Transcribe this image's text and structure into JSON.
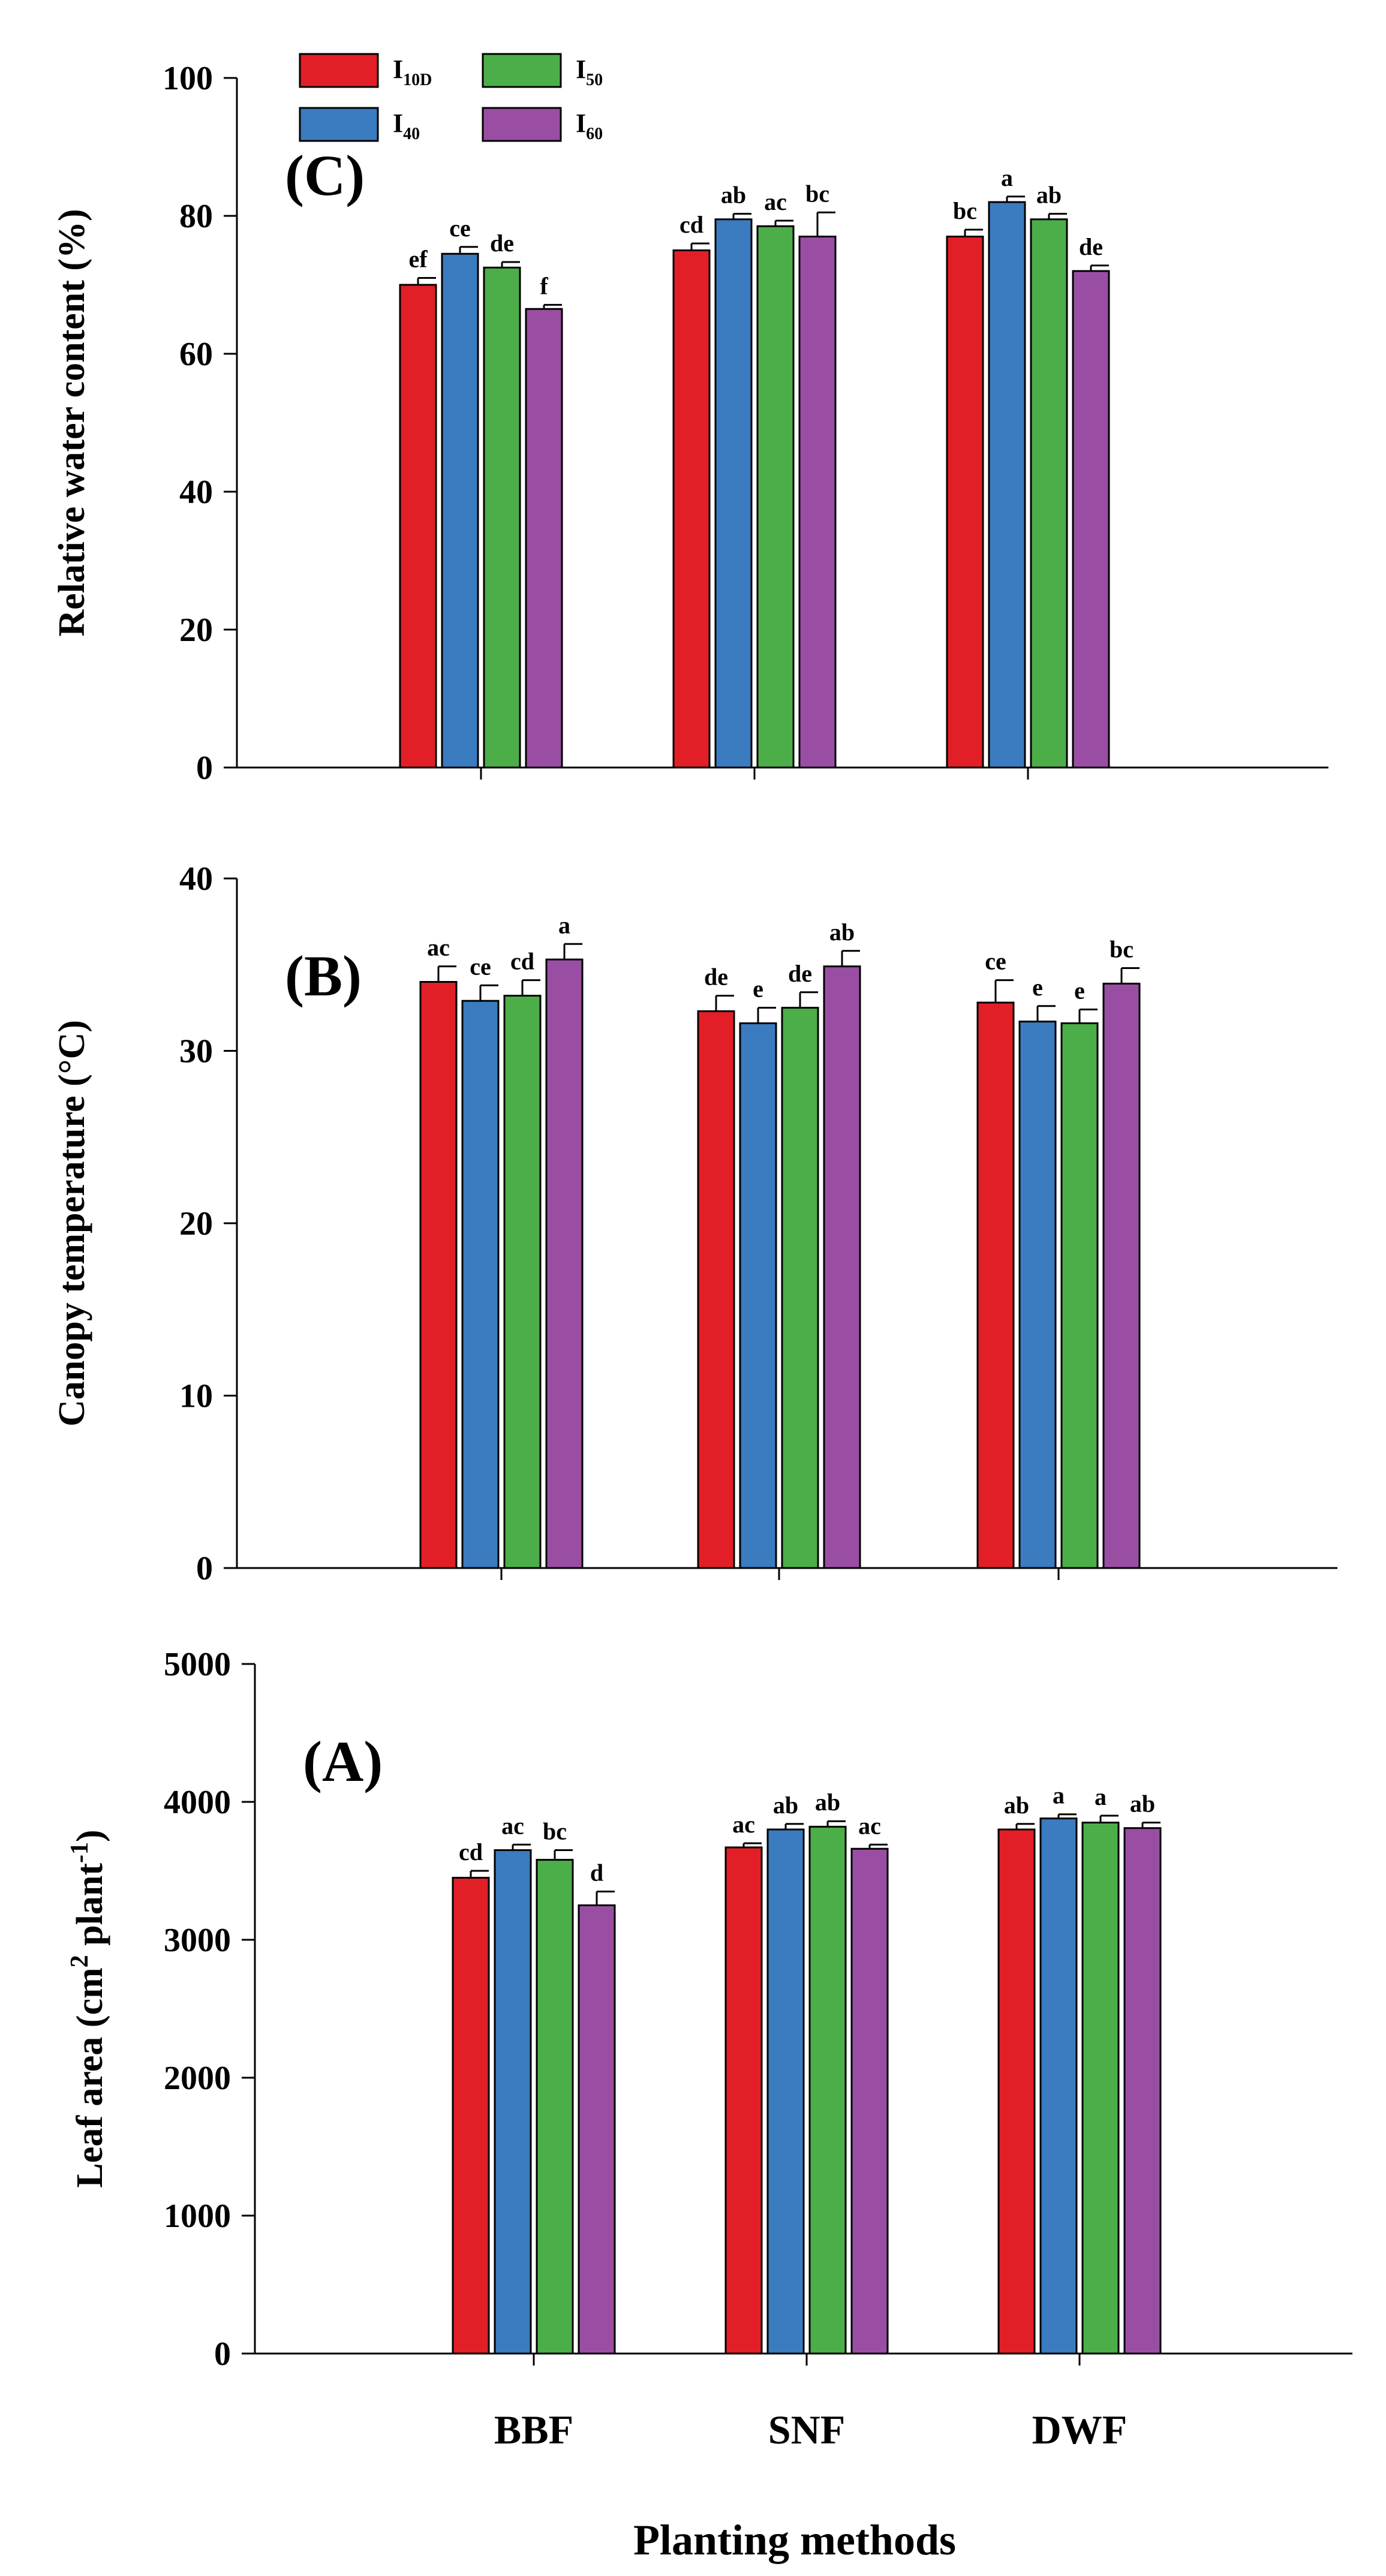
{
  "legend": [
    {
      "base": "I",
      "sub": "10D",
      "color": "#e21f26"
    },
    {
      "base": "I",
      "sub": "40",
      "color": "#3b7bbf"
    },
    {
      "base": "I",
      "sub": "50",
      "color": "#4cae48"
    },
    {
      "base": "I",
      "sub": "60",
      "color": "#9a4ea3"
    }
  ],
  "colors": {
    "I10D": "#e21f26",
    "I40": "#3b7bbf",
    "I50": "#4cae48",
    "I60": "#9a4ea3",
    "axis": "#000000"
  },
  "chart_data": [
    {
      "type": "bar",
      "panel": "(C)",
      "ylabel": "Relative water content (%)",
      "ylim": [
        0,
        100
      ],
      "yticks": [
        "0",
        "20",
        "40",
        "60",
        "80",
        "100"
      ],
      "categories": [
        "BBF",
        "SNF",
        "DWF"
      ],
      "show_category_labels": false,
      "series": [
        {
          "name": "I10D",
          "values": [
            70,
            75,
            77
          ],
          "errors": [
            1.0,
            1.0,
            1.0
          ],
          "labels": [
            "ef",
            "cd",
            "bc"
          ]
        },
        {
          "name": "I40",
          "values": [
            74.5,
            79.5,
            82
          ],
          "errors": [
            1.0,
            0.8,
            0.8
          ],
          "labels": [
            "ce",
            "ab",
            "a"
          ]
        },
        {
          "name": "I50",
          "values": [
            72.5,
            78.5,
            79.5
          ],
          "errors": [
            0.8,
            0.8,
            0.8
          ],
          "labels": [
            "de",
            "ac",
            "ab"
          ]
        },
        {
          "name": "I60",
          "values": [
            66.5,
            77,
            72
          ],
          "errors": [
            0.6,
            3.5,
            0.8
          ],
          "labels": [
            "f",
            "bc",
            "de"
          ]
        }
      ]
    },
    {
      "type": "bar",
      "panel": "(B)",
      "ylabel": "Canopy temperature (°C)",
      "ylim": [
        0,
        40
      ],
      "yticks": [
        "0",
        "10",
        "20",
        "30",
        "40"
      ],
      "categories": [
        "BBF",
        "SNF",
        "DWF"
      ],
      "show_category_labels": false,
      "series": [
        {
          "name": "I10D",
          "values": [
            34,
            32.3,
            32.8
          ],
          "errors": [
            0.9,
            0.9,
            1.3
          ],
          "labels": [
            "ac",
            "de",
            "ce"
          ]
        },
        {
          "name": "I40",
          "values": [
            32.9,
            31.6,
            31.7
          ],
          "errors": [
            0.9,
            0.9,
            0.9
          ],
          "labels": [
            "ce",
            "e",
            "e"
          ]
        },
        {
          "name": "I50",
          "values": [
            33.2,
            32.5,
            31.6
          ],
          "errors": [
            0.9,
            0.9,
            0.8
          ],
          "labels": [
            "cd",
            "de",
            "e"
          ]
        },
        {
          "name": "I60",
          "values": [
            35.3,
            34.9,
            33.9
          ],
          "errors": [
            0.9,
            0.9,
            0.9
          ],
          "labels": [
            "a",
            "ab",
            "bc"
          ]
        }
      ]
    },
    {
      "type": "bar",
      "panel": "(A)",
      "ylabel": "Leaf area (cm2 plant-1)",
      "ylabel_parts": [
        "Leaf area (cm",
        "2",
        " plant",
        "-1",
        ")"
      ],
      "ylim": [
        0,
        5000
      ],
      "yticks": [
        "0",
        "1000",
        "2000",
        "3000",
        "4000",
        "5000"
      ],
      "categories": [
        "BBF",
        "SNF",
        "DWF"
      ],
      "show_category_labels": true,
      "xlabel": "Planting methods",
      "series": [
        {
          "name": "I10D",
          "values": [
            3450,
            3670,
            3800
          ],
          "errors": [
            50,
            30,
            40
          ],
          "labels": [
            "cd",
            "ac",
            "ab"
          ]
        },
        {
          "name": "I40",
          "values": [
            3650,
            3800,
            3880
          ],
          "errors": [
            40,
            40,
            30
          ],
          "labels": [
            "ac",
            "ab",
            "a"
          ]
        },
        {
          "name": "I50",
          "values": [
            3580,
            3820,
            3850
          ],
          "errors": [
            70,
            40,
            50
          ],
          "labels": [
            "bc",
            "ab",
            "a"
          ]
        },
        {
          "name": "I60",
          "values": [
            3250,
            3660,
            3810
          ],
          "errors": [
            100,
            30,
            40
          ],
          "labels": [
            "d",
            "ac",
            "ab"
          ]
        }
      ]
    }
  ]
}
